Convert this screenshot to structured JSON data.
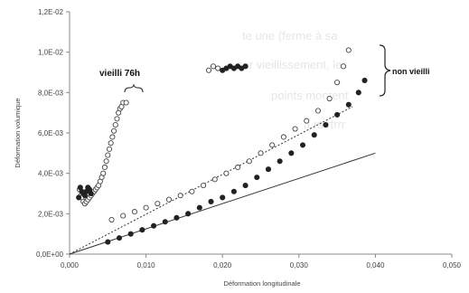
{
  "chart_data": {
    "type": "scatter",
    "xlabel": "Déformation longitudinale",
    "ylabel": "Déformation volumique",
    "xlim": [
      0,
      0.05
    ],
    "ylim": [
      0,
      0.012
    ],
    "x_ticks": [
      "0,000",
      "0,010",
      "0,020",
      "0,030",
      "0,040",
      "0,050"
    ],
    "y_ticks": [
      "0,0E+00",
      "2,0E-03",
      "4,0E-03",
      "6,0E-03",
      "8,0E-03",
      "1,0E-02",
      "1,2E-02"
    ],
    "grid": false,
    "annotations": {
      "aged": "vieilli 76h",
      "unaged": "non vieilli"
    },
    "background_text": [
      "te une (ferme à sa",
      "sur vieillissement, les",
      "points montent",
      "à rs rtrrr"
    ],
    "series": [
      {
        "marker": "open-circle",
        "color": "#444444",
        "points": [
          [
            0.0013,
            0.0032
          ],
          [
            0.0015,
            0.0029
          ],
          [
            0.0016,
            0.0028
          ],
          [
            0.0018,
            0.0026
          ],
          [
            0.002,
            0.0025
          ],
          [
            0.0022,
            0.0026
          ],
          [
            0.0024,
            0.0027
          ],
          [
            0.0026,
            0.0028
          ],
          [
            0.0028,
            0.0029
          ],
          [
            0.003,
            0.003
          ],
          [
            0.0032,
            0.0031
          ],
          [
            0.0034,
            0.0032
          ],
          [
            0.0036,
            0.0033
          ],
          [
            0.0038,
            0.0034
          ],
          [
            0.004,
            0.0036
          ],
          [
            0.0042,
            0.0038
          ],
          [
            0.0044,
            0.004
          ],
          [
            0.0046,
            0.0043
          ],
          [
            0.0048,
            0.0046
          ],
          [
            0.005,
            0.0049
          ],
          [
            0.0052,
            0.0052
          ],
          [
            0.0054,
            0.0055
          ],
          [
            0.0056,
            0.0058
          ],
          [
            0.0058,
            0.0061
          ],
          [
            0.006,
            0.0064
          ],
          [
            0.0062,
            0.0067
          ],
          [
            0.0064,
            0.007
          ],
          [
            0.0066,
            0.0072
          ],
          [
            0.0068,
            0.0073
          ],
          [
            0.007,
            0.0075
          ],
          [
            0.0074,
            0.0075
          ]
        ]
      },
      {
        "marker": "filled-circle",
        "color": "#222222",
        "points": [
          [
            0.0012,
            0.0028
          ],
          [
            0.0014,
            0.0033
          ],
          [
            0.0016,
            0.0031
          ],
          [
            0.0018,
            0.003
          ],
          [
            0.002,
            0.0029
          ],
          [
            0.0022,
            0.0031
          ],
          [
            0.0024,
            0.0033
          ],
          [
            0.0026,
            0.0032
          ],
          [
            0.0028,
            0.003
          ]
        ]
      },
      {
        "marker": "open-circle",
        "color": "#444444",
        "points": [
          [
            0.0055,
            0.0017
          ],
          [
            0.007,
            0.0019
          ],
          [
            0.0085,
            0.0021
          ],
          [
            0.01,
            0.0023
          ],
          [
            0.0115,
            0.0025
          ],
          [
            0.013,
            0.0027
          ],
          [
            0.0145,
            0.0029
          ],
          [
            0.016,
            0.0031
          ],
          [
            0.0175,
            0.0034
          ],
          [
            0.019,
            0.0037
          ],
          [
            0.0205,
            0.004
          ],
          [
            0.022,
            0.0043
          ],
          [
            0.0235,
            0.0046
          ],
          [
            0.025,
            0.005
          ],
          [
            0.0265,
            0.0054
          ],
          [
            0.028,
            0.0058
          ],
          [
            0.0295,
            0.0062
          ],
          [
            0.031,
            0.0066
          ],
          [
            0.0325,
            0.0071
          ],
          [
            0.034,
            0.0077
          ],
          [
            0.035,
            0.0085
          ],
          [
            0.0358,
            0.0093
          ],
          [
            0.0365,
            0.0101
          ]
        ]
      },
      {
        "marker": "filled-circle",
        "color": "#222222",
        "points": [
          [
            0.005,
            0.0006
          ],
          [
            0.0065,
            0.0008
          ],
          [
            0.008,
            0.001
          ],
          [
            0.0095,
            0.0012
          ],
          [
            0.011,
            0.0014
          ],
          [
            0.0125,
            0.0016
          ],
          [
            0.014,
            0.0018
          ],
          [
            0.0155,
            0.002
          ],
          [
            0.017,
            0.0023
          ],
          [
            0.0185,
            0.0026
          ],
          [
            0.02,
            0.0028
          ],
          [
            0.0215,
            0.0031
          ],
          [
            0.023,
            0.0034
          ],
          [
            0.0245,
            0.0038
          ],
          [
            0.026,
            0.0042
          ],
          [
            0.0275,
            0.0046
          ],
          [
            0.029,
            0.005
          ],
          [
            0.0305,
            0.0054
          ],
          [
            0.032,
            0.0059
          ],
          [
            0.0335,
            0.0064
          ],
          [
            0.035,
            0.0069
          ],
          [
            0.0365,
            0.0074
          ],
          [
            0.0378,
            0.008
          ],
          [
            0.0386,
            0.0086
          ]
        ]
      },
      {
        "marker": "open-circle",
        "color": "#444444",
        "points": [
          [
            0.0182,
            0.0091
          ],
          [
            0.0188,
            0.0093
          ],
          [
            0.0194,
            0.0092
          ]
        ]
      },
      {
        "marker": "filled-circle",
        "color": "#222222",
        "points": [
          [
            0.02,
            0.0091
          ],
          [
            0.0205,
            0.0092
          ],
          [
            0.021,
            0.0093
          ],
          [
            0.0215,
            0.0092
          ],
          [
            0.022,
            0.0093
          ],
          [
            0.0225,
            0.0092
          ],
          [
            0.023,
            0.0093
          ]
        ]
      }
    ],
    "lines": [
      {
        "style": "solid",
        "color": "#333333",
        "points": [
          [
            0,
            0
          ],
          [
            0.04,
            0.005
          ]
        ]
      },
      {
        "style": "dotted",
        "color": "#333333",
        "points": [
          [
            0,
            0
          ],
          [
            0.037,
            0.0073
          ]
        ]
      }
    ]
  }
}
